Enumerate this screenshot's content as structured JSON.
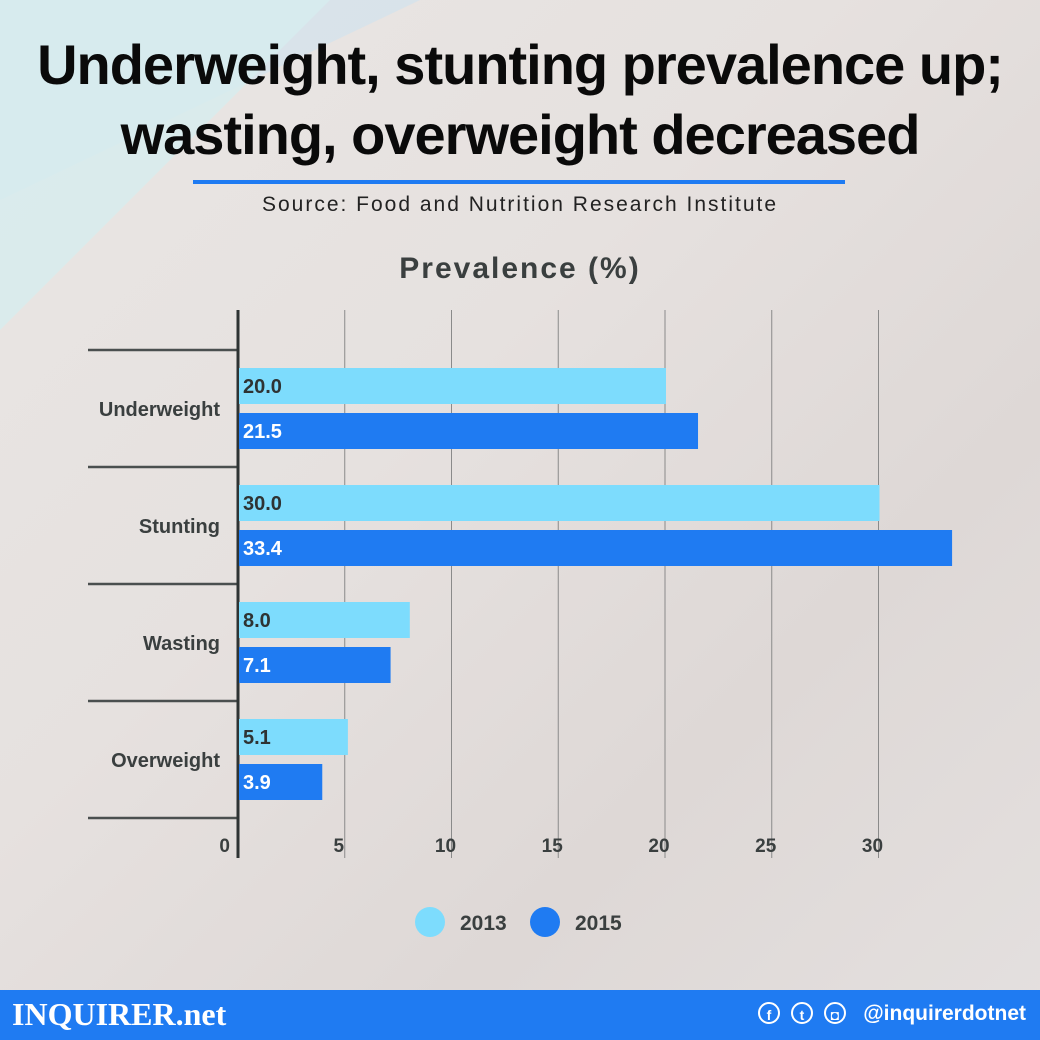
{
  "title_lines": [
    "Underweight, stunting prevalence up;",
    "wasting, overweight decreased"
  ],
  "source": "Source: Food and Nutrition Research Institute",
  "chart_data": {
    "type": "bar",
    "orientation": "horizontal",
    "title": "Prevalence (%)",
    "categories": [
      "Underweight",
      "Stunting",
      "Wasting",
      "Overweight"
    ],
    "series": [
      {
        "name": "2013",
        "color": "#7ddcfd",
        "values": [
          20.0,
          30.0,
          8.0,
          5.1
        ]
      },
      {
        "name": "2015",
        "color": "#1f7bf2",
        "values": [
          21.5,
          33.4,
          7.1,
          3.9
        ]
      }
    ],
    "xticks": [
      0,
      5,
      10,
      15,
      20,
      25,
      30
    ],
    "xlim": [
      0,
      33.4
    ],
    "grid": true,
    "legend": "bottom"
  },
  "footer": {
    "brand": "INQUIRER.net",
    "handle": "@inquirerdotnet",
    "icons": [
      "facebook-icon",
      "twitter-icon",
      "instagram-icon"
    ],
    "color": "#1f7bf2"
  }
}
